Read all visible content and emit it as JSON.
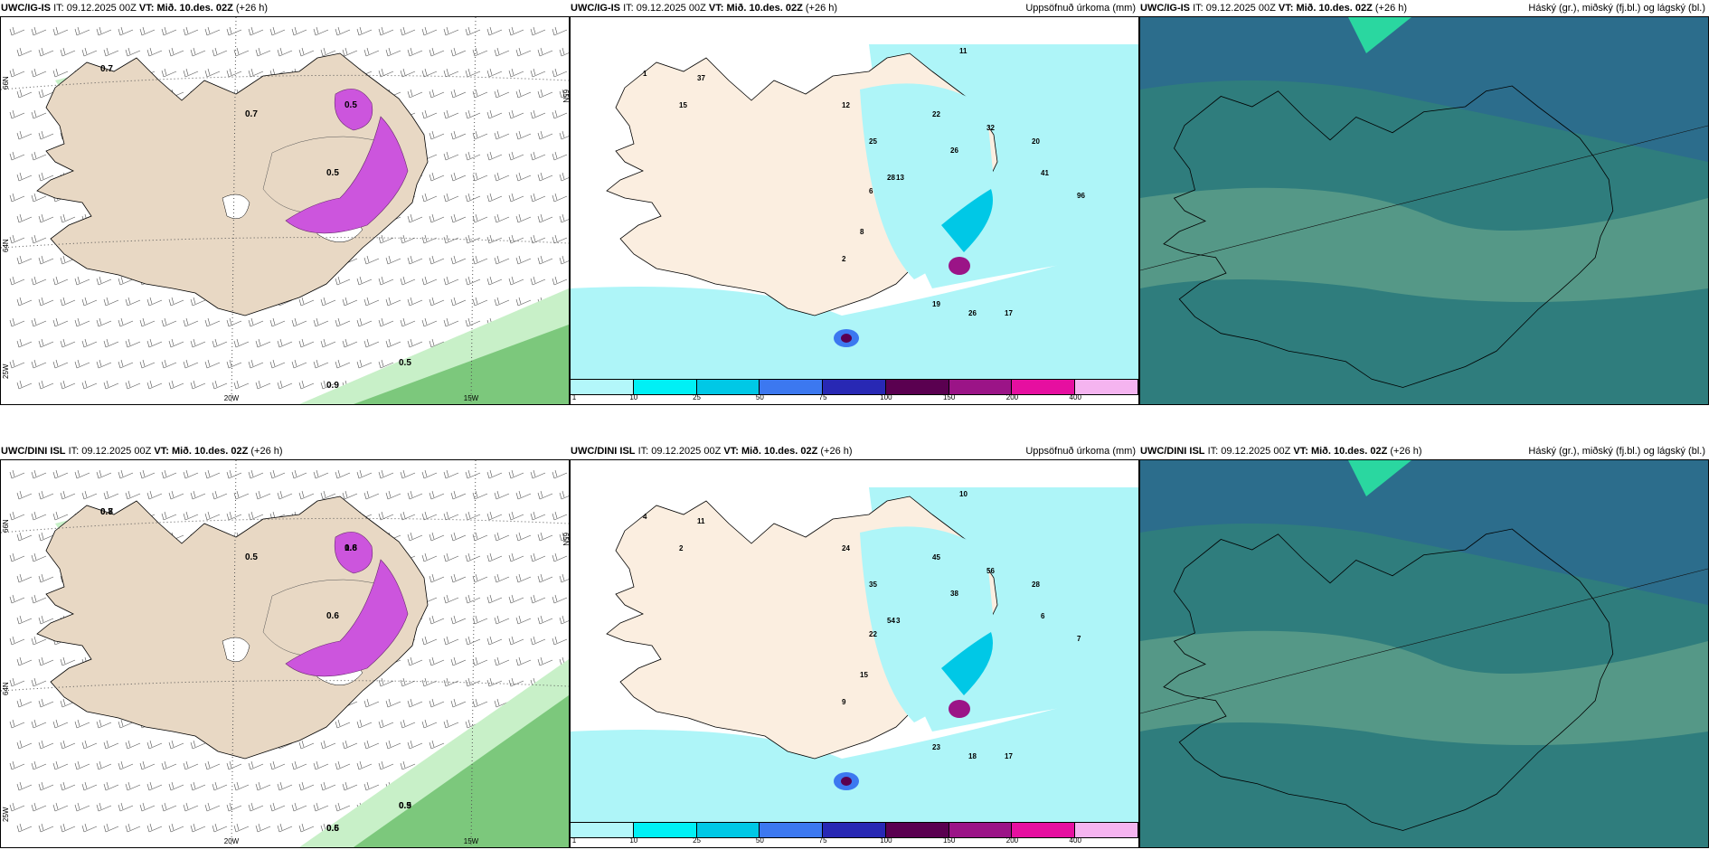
{
  "panels": [
    {
      "id": "p11",
      "model": "UWC/IG-IS",
      "it_label": "IT:",
      "it": "09.12.2025 00Z",
      "vt_label": "VT:",
      "vt": "Mið. 10.des. 02Z",
      "lead": "(+26 h)",
      "right_title": ""
    },
    {
      "id": "p12",
      "model": "UWC/IG-IS",
      "it_label": "IT:",
      "it": "09.12.2025 00Z",
      "vt_label": "VT:",
      "vt": "Mið. 10.des. 02Z",
      "lead": "(+26 h)",
      "right_title": "Uppsöfnuð úrkoma (mm)"
    },
    {
      "id": "p13",
      "model": "UWC/IG-IS",
      "it_label": "IT:",
      "it": "09.12.2025 00Z",
      "vt_label": "VT:",
      "vt": "Mið. 10.des. 02Z",
      "lead": "(+26 h)",
      "right_title": "Háský (gr.), miðský (fj.bl.) og lágský (bl.)"
    },
    {
      "id": "p21",
      "model": "UWC/DINI ISL",
      "it_label": "IT:",
      "it": "09.12.2025 00Z",
      "vt_label": "VT:",
      "vt": "Mið. 10.des. 02Z",
      "lead": "(+26 h)",
      "right_title": ""
    },
    {
      "id": "p22",
      "model": "UWC/DINI ISL",
      "it_label": "IT:",
      "it": "09.12.2025 00Z",
      "vt_label": "VT:",
      "vt": "Mið. 10.des. 02Z",
      "lead": "(+26 h)",
      "right_title": "Uppsöfnuð úrkoma (mm)"
    },
    {
      "id": "p23",
      "model": "UWC/DINI ISL",
      "it_label": "IT:",
      "it": "09.12.2025 00Z",
      "vt_label": "VT:",
      "vt": "Mið. 10.des. 02Z",
      "lead": "(+26 h)",
      "right_title": "Háský (gr.), miðský (fj.bl.) og lágský (bl.)"
    }
  ],
  "grid_labels": {
    "lon_20": "20W",
    "lon_15": "15W",
    "lat_66": "66N",
    "lat_64": "64N",
    "lat_65": "65N",
    "lon_25": "25W"
  },
  "precip_legend": {
    "ticks": [
      "1",
      "10",
      "25",
      "50",
      "75",
      "100",
      "150",
      "200",
      "400"
    ],
    "colors": [
      "#b3f7fa",
      "#00f0f5",
      "#00c8e6",
      "#3c78f0",
      "#2828b4",
      "#5a0050",
      "#9b1487",
      "#e60fa0",
      "#f5b4f0"
    ]
  },
  "colors": {
    "land": "#e8d8c4",
    "land_precip": "#fbeee0",
    "snow": "#ffffff",
    "sea_precip": "#aef5f8",
    "purple": "#cc55dd",
    "green_light": "#c8f0c8",
    "green": "#7cc87c",
    "cloud_base": "#2f7d7d",
    "cloud_low": "#5f9f8a",
    "cloud_mid": "#2c6d8c",
    "cloud_high": "#2ad7a0"
  },
  "values": {
    "p11": [
      "0.7",
      "0.9",
      "0.5",
      "0.5",
      "0.7",
      "0.5"
    ],
    "p12": [
      "1",
      "15",
      "37",
      "12",
      "25",
      "22",
      "32",
      "26",
      "28",
      "20",
      "19",
      "26",
      "17",
      "8",
      "6",
      "2",
      "11",
      "13",
      "41",
      "96"
    ],
    "p21": [
      "0.7",
      "0.5",
      "0.9",
      "1.8",
      "0.5",
      "0.6",
      "0.8",
      "0.6",
      "0.5",
      "0.6"
    ],
    "p22": [
      "4",
      "2",
      "11",
      "24",
      "35",
      "45",
      "56",
      "38",
      "54",
      "28",
      "23",
      "18",
      "17",
      "15",
      "22",
      "9",
      "10",
      "3",
      "6",
      "7"
    ]
  }
}
